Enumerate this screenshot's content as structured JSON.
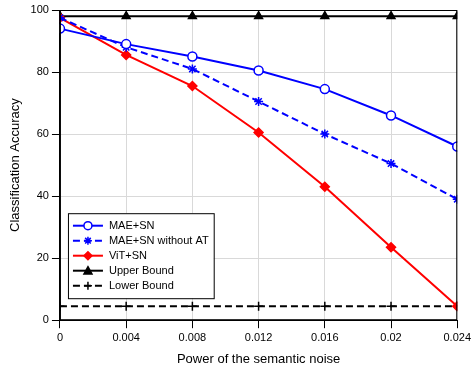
{
  "chart_data": {
    "type": "line",
    "xlabel": "Power of the semantic noise",
    "ylabel": "Classification Accuracy",
    "x": [
      0,
      0.004,
      0.008,
      0.012,
      0.016,
      0.02,
      0.024
    ],
    "xlim": [
      0,
      0.024
    ],
    "xticks": [
      0,
      0.004,
      0.008,
      0.012,
      0.016,
      0.02,
      0.024
    ],
    "ylim": [
      0,
      100
    ],
    "yticks": [
      0,
      20,
      40,
      60,
      80,
      100
    ],
    "grid": true,
    "legend": "lower left",
    "series": [
      {
        "name": "MAE+SN",
        "color": "#0000ff",
        "marker": "circle",
        "line_style": "solid",
        "values": [
          94,
          89,
          85,
          80.5,
          74.5,
          66,
          56
        ]
      },
      {
        "name": "MAE+SN without AT",
        "color": "#0000ff",
        "marker": "star",
        "line_style": "dashed",
        "values": [
          97.5,
          88,
          81,
          70.5,
          60,
          50.5,
          39
        ]
      },
      {
        "name": "ViT+SN",
        "color": "#ff0000",
        "marker": "diamond",
        "line_style": "solid",
        "values": [
          97.5,
          85.5,
          75.5,
          60.5,
          43,
          23.5,
          4.5
        ]
      },
      {
        "name": "Upper Bound",
        "color": "#000000",
        "marker": "triangle",
        "line_style": "solid",
        "values": [
          98,
          98,
          98,
          98,
          98,
          98,
          98
        ]
      },
      {
        "name": "Lower Bound",
        "color": "#000000",
        "marker": "plus",
        "line_style": "dashed",
        "values": [
          4.5,
          4.5,
          4.5,
          4.5,
          4.5,
          4.5,
          4.5
        ]
      }
    ]
  }
}
